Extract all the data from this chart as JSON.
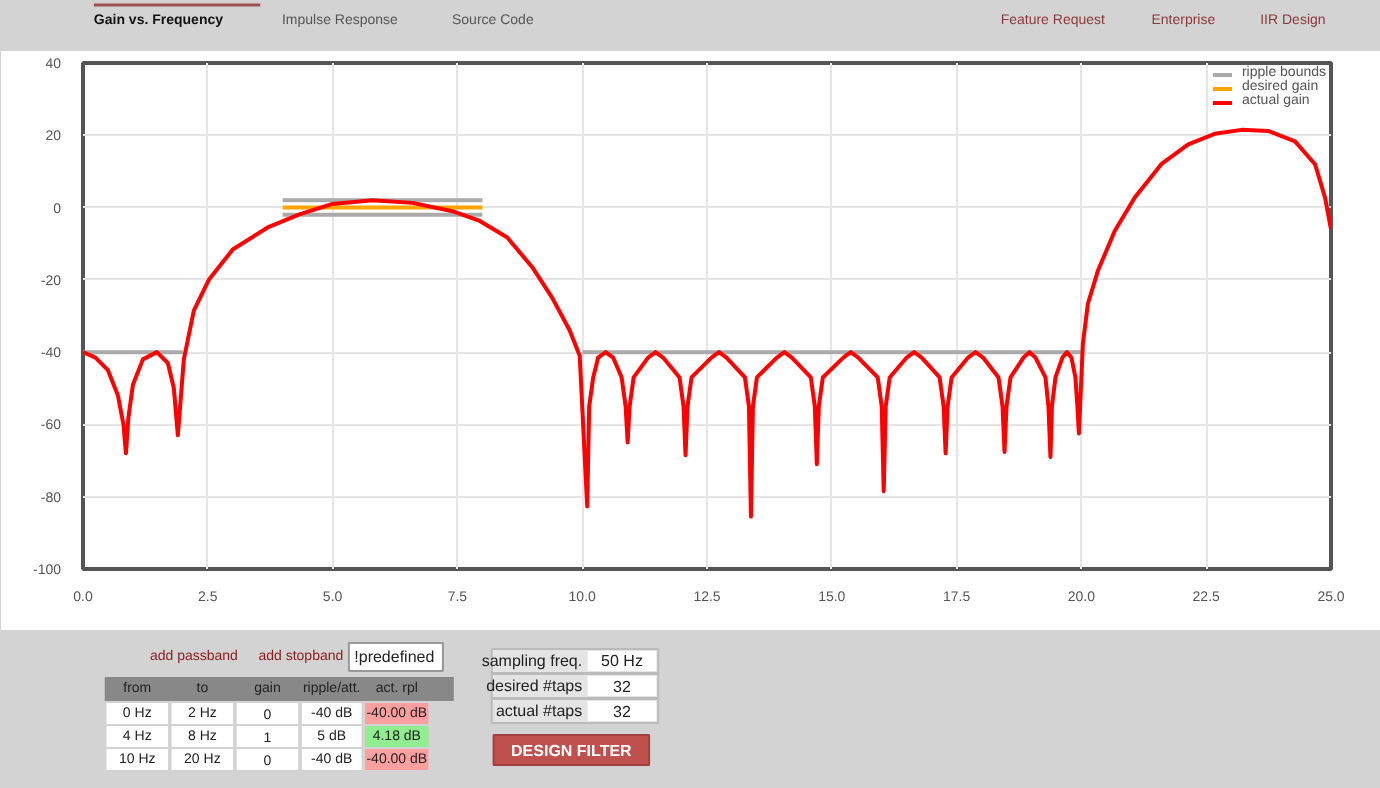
{
  "chart_data": [
    {
      "type": "other",
      "categories": [
        "Gain vs. Frequency",
        "Impulse Response",
        "Source Code"
      ],
      "annotations": [
        "Feature Request",
        "Enterprise",
        "IIR Design"
      ]
    },
    {
      "type": "line",
      "xlim": [
        0,
        25
      ],
      "ylim": [
        -100,
        40
      ],
      "xticks": [
        {
          "value": 0,
          "label": "0.0"
        },
        {
          "value": 2.5,
          "label": "2.5"
        },
        {
          "value": 5,
          "label": "5.0"
        },
        {
          "value": 7.5,
          "label": "7.5"
        },
        {
          "value": 10,
          "label": "10.0"
        },
        {
          "value": 12.5,
          "label": "12.5"
        },
        {
          "value": 15,
          "label": "15.0"
        },
        {
          "value": 17.5,
          "label": "17.5"
        },
        {
          "value": 20,
          "label": "20.0"
        },
        {
          "value": 22.5,
          "label": "22.5"
        },
        {
          "value": 25,
          "label": "25.0"
        }
      ],
      "yticks": [
        -100,
        -80,
        -60,
        -40,
        -20,
        0,
        20,
        40
      ],
      "grid": true,
      "legend": "top right",
      "marker": "none",
      "line_style": "solid",
      "series": [
        {
          "name": "ripple bounds",
          "color": "#aaaaaa",
          "x": [
            0,
            2,
            6,
            10,
            20
          ],
          "values": [
            -40,
            -40,
            null,
            -40,
            -40
          ]
        },
        {
          "color": "#aaaaaa",
          "x": [
            4,
            8
          ],
          "values": [
            2,
            2
          ]
        },
        {
          "color": "#aaaaaa",
          "x": [
            4,
            8
          ],
          "values": [
            -2,
            -2
          ]
        },
        {
          "name": "desired gain",
          "color": "#ffa500",
          "x": [
            4,
            8
          ],
          "values": [
            0,
            0
          ]
        },
        {
          "name": "actual gain",
          "color": "#ff0000",
          "x": [
            0,
            0.25,
            0.5,
            0.7,
            0.81,
            0.86,
            0.91,
            1.0,
            1.2,
            1.48,
            1.7,
            1.82,
            1.9,
            2.02,
            2.22,
            2.52,
            3.0,
            3.7,
            4.35,
            5.0,
            5.8,
            6.6,
            7.4,
            7.95,
            8.5,
            9.0,
            9.4,
            9.75,
            9.95,
            10.1,
            10.14,
            10.22,
            10.32,
            10.47,
            10.62,
            10.79,
            10.87,
            10.91,
            10.95,
            11.03,
            11.32,
            11.47,
            11.62,
            11.95,
            12.03,
            12.07,
            12.11,
            12.19,
            12.59,
            12.74,
            12.89,
            13.26,
            13.34,
            13.38,
            13.42,
            13.5,
            13.9,
            14.05,
            14.2,
            14.58,
            14.66,
            14.7,
            14.74,
            14.82,
            15.23,
            15.38,
            15.53,
            15.92,
            16.0,
            16.04,
            16.08,
            16.16,
            16.5,
            16.65,
            16.8,
            17.16,
            17.24,
            17.28,
            17.32,
            17.4,
            17.73,
            17.88,
            18.03,
            18.34,
            18.42,
            18.46,
            18.5,
            18.58,
            18.84,
            18.96,
            19.08,
            19.28,
            19.34,
            19.38,
            19.41,
            19.48,
            19.62,
            19.71,
            19.8,
            19.88,
            19.92,
            19.95,
            20.03,
            20.13,
            20.33,
            20.67,
            21.07,
            21.6,
            22.14,
            22.67,
            23.21,
            23.74,
            24.28,
            24.68,
            24.88,
            25
          ],
          "values": [
            -40,
            -41.5,
            -45,
            -52,
            -60,
            -68,
            -58,
            -49,
            -42,
            -40,
            -43,
            -50,
            -63,
            -42,
            -28.5,
            -20,
            -11.6,
            -5.5,
            -1.8,
            1,
            2,
            1.3,
            -1,
            -3.7,
            -8.3,
            -16.5,
            -25,
            -34,
            -41,
            -82.7,
            -55,
            -47,
            -41.5,
            -40,
            -41.5,
            -47,
            -55,
            -65,
            -55,
            -47,
            -41.5,
            -40,
            -41.5,
            -47,
            -55,
            -68.5,
            -55,
            -47,
            -41.5,
            -40,
            -41.5,
            -47,
            -55,
            -85.5,
            -55,
            -47,
            -41.5,
            -40,
            -41.5,
            -47,
            -55,
            -71,
            -55,
            -47,
            -41.5,
            -40,
            -41.5,
            -47,
            -55,
            -78.5,
            -55,
            -47,
            -41.5,
            -40,
            -41.5,
            -47,
            -55,
            -68,
            -55,
            -47,
            -41.5,
            -40,
            -41.5,
            -47,
            -55,
            -67.6,
            -55,
            -47,
            -41.5,
            -40,
            -41.5,
            -47,
            -55,
            -69,
            -55,
            -47,
            -41.5,
            -40,
            -41.5,
            -47,
            -55,
            -62.5,
            -37.6,
            -26.6,
            -17.5,
            -6.4,
            2.8,
            12,
            17.5,
            20.4,
            21.5,
            21.2,
            18.3,
            12,
            2.8,
            -6
          ]
        }
      ]
    },
    {
      "type": "other",
      "categories": [
        "from",
        "to",
        "gain",
        "ripple/att.",
        "act. rpl"
      ],
      "cell_labels": [
        [
          "0 Hz",
          "2 Hz",
          "0",
          "-40 dB",
          "-40.00 dB"
        ],
        [
          "4 Hz",
          "8 Hz",
          "1",
          "5 dB",
          "4.18 dB"
        ],
        [
          "10 Hz",
          "20 Hz",
          "0",
          "-40 dB",
          "-40.00 dB"
        ]
      ],
      "annotations": [
        "add passband",
        "add stopband",
        "!predefined",
        "sampling freq.",
        "50 Hz",
        "desired #taps",
        "32",
        "actual #taps",
        "32",
        "DESIGN FILTER"
      ]
    }
  ]
}
